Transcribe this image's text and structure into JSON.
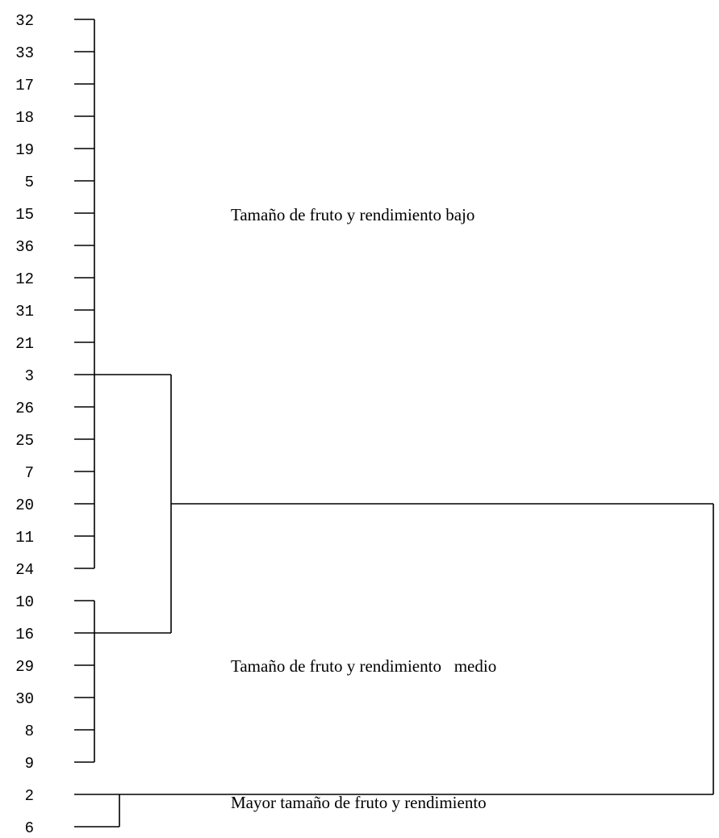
{
  "leaves": [
    "32",
    "33",
    "17",
    "18",
    "19",
    "5",
    "15",
    "36",
    "12",
    "31",
    "21",
    "3",
    "26",
    "25",
    "7",
    "20",
    "11",
    "24",
    "10",
    "16",
    "29",
    "30",
    "8",
    "9",
    "2",
    "6"
  ],
  "clusters": [
    {
      "id": "low",
      "label": "Tamaño de fruto y rendimiento bajo"
    },
    {
      "id": "medium",
      "label": "Tamaño de fruto y rendimiento   medio"
    },
    {
      "id": "high",
      "label": "Mayor tamaño de fruto y rendimiento"
    }
  ]
}
